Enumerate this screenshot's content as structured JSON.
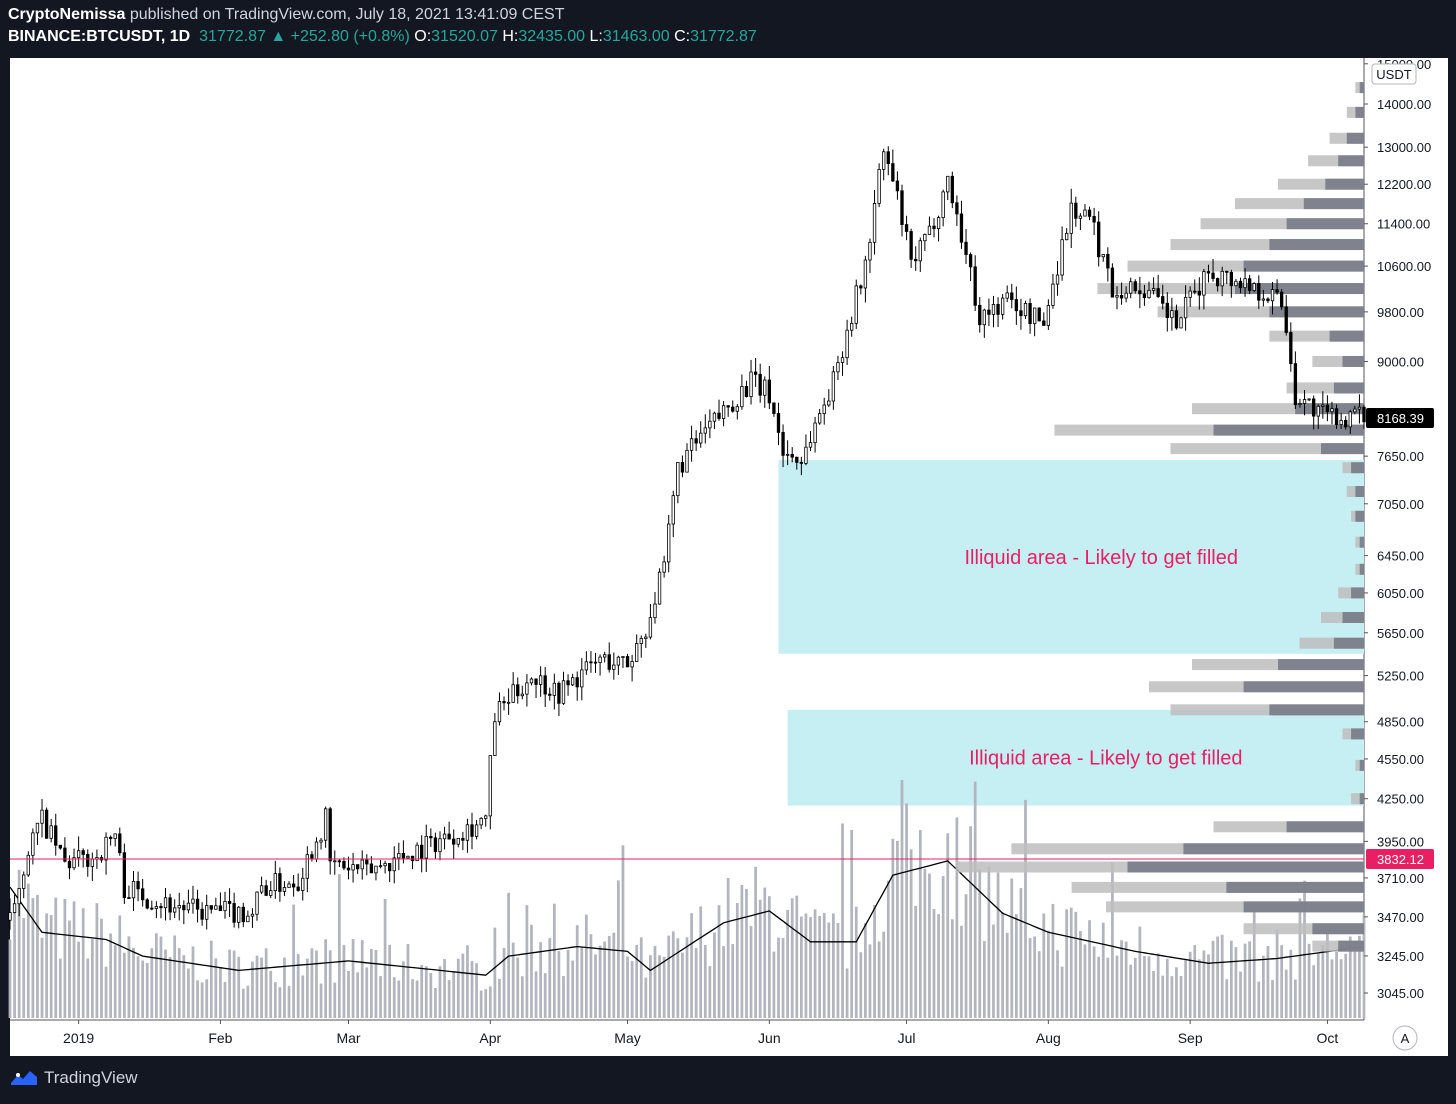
{
  "header": {
    "author": "CryptoNemissa",
    "published": "published on TradingView.com, July 18, 2021 13:41:09 CEST",
    "symbol": "BINANCE:BTCUSDT, 1D",
    "last_price": "31772.87",
    "change": "+252.80 (+0.8%)",
    "open_label": "O:",
    "open": "31520.07",
    "high_label": "H:",
    "high": "32435.00",
    "low_label": "L:",
    "low": "31463.00",
    "close_label": "C:",
    "close": "31772.87"
  },
  "footer": {
    "brand": "TradingView"
  },
  "colors": {
    "background": "#131722",
    "plot_bg": "#ffffff",
    "candle": "#000000",
    "volume": "#b2b5be",
    "zone": "#c6eff4",
    "zone_text": "#e91e63",
    "hline": "#e91e63",
    "profile_light": "#bdbdbd",
    "profile_dark": "#787b86"
  },
  "chart_data": {
    "type": "candlestick",
    "title": "",
    "currency_label": "USDT",
    "scale": "log",
    "ylim": [
      3000,
      15000
    ],
    "y_ticks": [
      "15000.00",
      "14000.00",
      "13000.00",
      "12200.00",
      "11400.00",
      "10600.00",
      "9800.00",
      "9000.00",
      "7650.00",
      "7050.00",
      "6450.00",
      "6050.00",
      "5650.00",
      "5250.00",
      "4850.00",
      "4550.00",
      "4250.00",
      "3950.00",
      "3710.00",
      "3470.00",
      "3245.00",
      "3045.00"
    ],
    "x_ticks": [
      "2019",
      "Feb",
      "Mar",
      "Apr",
      "May",
      "Jun",
      "Jul",
      "Aug",
      "Sep",
      "Oct"
    ],
    "x_range": [
      "2018-12-17",
      "2019-10-09"
    ],
    "price_labels": [
      {
        "value": 8168.39,
        "text": "8168.39",
        "style": "last"
      },
      {
        "value": 3832.12,
        "text": "3832.12",
        "style": "line"
      }
    ],
    "horizontal_line": 3832.12,
    "zones": [
      {
        "label": "Illiquid area - Likely to get filled",
        "from": "2019-06-03",
        "to": "2019-10-09",
        "low": 5450,
        "high": 7600
      },
      {
        "label": "Illiquid area - Likely to get filled",
        "from": "2019-06-05",
        "to": "2019-10-09",
        "low": 4200,
        "high": 4950
      }
    ],
    "price_path": [
      {
        "date": "2018-12-17",
        "price": 3450
      },
      {
        "date": "2018-12-21",
        "price": 3900
      },
      {
        "date": "2018-12-24",
        "price": 4100
      },
      {
        "date": "2018-12-29",
        "price": 3800
      },
      {
        "date": "2019-01-05",
        "price": 3850
      },
      {
        "date": "2019-01-09",
        "price": 4000
      },
      {
        "date": "2019-01-11",
        "price": 3650
      },
      {
        "date": "2019-01-20",
        "price": 3550
      },
      {
        "date": "2019-01-28",
        "price": 3500
      },
      {
        "date": "2019-02-08",
        "price": 3500
      },
      {
        "date": "2019-02-10",
        "price": 3650
      },
      {
        "date": "2019-02-18",
        "price": 3700
      },
      {
        "date": "2019-02-24",
        "price": 4100
      },
      {
        "date": "2019-02-25",
        "price": 3800
      },
      {
        "date": "2019-03-05",
        "price": 3750
      },
      {
        "date": "2019-03-20",
        "price": 3950
      },
      {
        "date": "2019-03-31",
        "price": 4100
      },
      {
        "date": "2019-04-02",
        "price": 4900
      },
      {
        "date": "2019-04-10",
        "price": 5250
      },
      {
        "date": "2019-04-16",
        "price": 5100
      },
      {
        "date": "2019-04-25",
        "price": 5400
      },
      {
        "date": "2019-05-01",
        "price": 5350
      },
      {
        "date": "2019-05-05",
        "price": 5700
      },
      {
        "date": "2019-05-09",
        "price": 6300
      },
      {
        "date": "2019-05-12",
        "price": 7500
      },
      {
        "date": "2019-05-17",
        "price": 7900
      },
      {
        "date": "2019-05-28",
        "price": 8700
      },
      {
        "date": "2019-06-01",
        "price": 8500
      },
      {
        "date": "2019-06-04",
        "price": 7700
      },
      {
        "date": "2019-06-08",
        "price": 7600
      },
      {
        "date": "2019-06-15",
        "price": 8700
      },
      {
        "date": "2019-06-22",
        "price": 10600
      },
      {
        "date": "2019-06-26",
        "price": 12900
      },
      {
        "date": "2019-06-29",
        "price": 11900
      },
      {
        "date": "2019-07-02",
        "price": 10600
      },
      {
        "date": "2019-07-06",
        "price": 11200
      },
      {
        "date": "2019-07-10",
        "price": 12300
      },
      {
        "date": "2019-07-17",
        "price": 9700
      },
      {
        "date": "2019-07-23",
        "price": 10000
      },
      {
        "date": "2019-07-31",
        "price": 9600
      },
      {
        "date": "2019-08-06",
        "price": 11700
      },
      {
        "date": "2019-08-10",
        "price": 11500
      },
      {
        "date": "2019-08-15",
        "price": 10200
      },
      {
        "date": "2019-08-22",
        "price": 10200
      },
      {
        "date": "2019-08-29",
        "price": 9600
      },
      {
        "date": "2019-09-05",
        "price": 10500
      },
      {
        "date": "2019-09-13",
        "price": 10300
      },
      {
        "date": "2019-09-21",
        "price": 10000
      },
      {
        "date": "2019-09-24",
        "price": 8500
      },
      {
        "date": "2019-09-30",
        "price": 8200
      },
      {
        "date": "2019-10-09",
        "price": 8168
      }
    ],
    "volume_ma_path": [
      {
        "date": "2018-12-17",
        "value": 0.55
      },
      {
        "date": "2018-12-24",
        "value": 0.36
      },
      {
        "date": "2019-01-07",
        "value": 0.33
      },
      {
        "date": "2019-01-15",
        "value": 0.26
      },
      {
        "date": "2019-02-05",
        "value": 0.2
      },
      {
        "date": "2019-03-01",
        "value": 0.24
      },
      {
        "date": "2019-03-31",
        "value": 0.18
      },
      {
        "date": "2019-04-05",
        "value": 0.26
      },
      {
        "date": "2019-04-20",
        "value": 0.3
      },
      {
        "date": "2019-05-01",
        "value": 0.28
      },
      {
        "date": "2019-05-06",
        "value": 0.2
      },
      {
        "date": "2019-05-22",
        "value": 0.4
      },
      {
        "date": "2019-06-01",
        "value": 0.45
      },
      {
        "date": "2019-06-10",
        "value": 0.32
      },
      {
        "date": "2019-06-20",
        "value": 0.32
      },
      {
        "date": "2019-06-28",
        "value": 0.6
      },
      {
        "date": "2019-07-10",
        "value": 0.66
      },
      {
        "date": "2019-07-22",
        "value": 0.44
      },
      {
        "date": "2019-08-01",
        "value": 0.36
      },
      {
        "date": "2019-08-20",
        "value": 0.28
      },
      {
        "date": "2019-09-05",
        "value": 0.23
      },
      {
        "date": "2019-09-20",
        "value": 0.25
      },
      {
        "date": "2019-10-09",
        "value": 0.3
      }
    ],
    "volume_profile": [
      {
        "price": 14400,
        "total": 0.02,
        "part": 0.01
      },
      {
        "price": 13800,
        "total": 0.04,
        "part": 0.02
      },
      {
        "price": 13200,
        "total": 0.08,
        "part": 0.04
      },
      {
        "price": 12700,
        "total": 0.13,
        "part": 0.06
      },
      {
        "price": 12200,
        "total": 0.2,
        "part": 0.09
      },
      {
        "price": 11800,
        "total": 0.3,
        "part": 0.14
      },
      {
        "price": 11400,
        "total": 0.38,
        "part": 0.18
      },
      {
        "price": 11000,
        "total": 0.45,
        "part": 0.22
      },
      {
        "price": 10600,
        "total": 0.55,
        "part": 0.28
      },
      {
        "price": 10200,
        "total": 0.62,
        "part": 0.3
      },
      {
        "price": 9800,
        "total": 0.48,
        "part": 0.22
      },
      {
        "price": 9400,
        "total": 0.22,
        "part": 0.08
      },
      {
        "price": 9000,
        "total": 0.12,
        "part": 0.05
      },
      {
        "price": 8600,
        "total": 0.18,
        "part": 0.07
      },
      {
        "price": 8300,
        "total": 0.4,
        "part": 0.16
      },
      {
        "price": 8000,
        "total": 0.72,
        "part": 0.35
      },
      {
        "price": 7750,
        "total": 0.45,
        "part": 0.1
      },
      {
        "price": 7500,
        "total": 0.05,
        "part": 0.03
      },
      {
        "price": 7200,
        "total": 0.04,
        "part": 0.02
      },
      {
        "price": 6900,
        "total": 0.03,
        "part": 0.02
      },
      {
        "price": 6600,
        "total": 0.02,
        "part": 0.01
      },
      {
        "price": 6300,
        "total": 0.02,
        "part": 0.01
      },
      {
        "price": 6050,
        "total": 0.06,
        "part": 0.03
      },
      {
        "price": 5800,
        "total": 0.1,
        "part": 0.05
      },
      {
        "price": 5550,
        "total": 0.15,
        "part": 0.07
      },
      {
        "price": 5350,
        "total": 0.4,
        "part": 0.2
      },
      {
        "price": 5150,
        "total": 0.5,
        "part": 0.28
      },
      {
        "price": 4950,
        "total": 0.45,
        "part": 0.22
      },
      {
        "price": 4750,
        "total": 0.05,
        "part": 0.03
      },
      {
        "price": 4500,
        "total": 0.02,
        "part": 0.01
      },
      {
        "price": 4250,
        "total": 0.03,
        "part": 0.01
      },
      {
        "price": 4050,
        "total": 0.35,
        "part": 0.18
      },
      {
        "price": 3900,
        "total": 0.82,
        "part": 0.42
      },
      {
        "price": 3780,
        "total": 0.95,
        "part": 0.55
      },
      {
        "price": 3650,
        "total": 0.68,
        "part": 0.32
      },
      {
        "price": 3530,
        "total": 0.6,
        "part": 0.28
      },
      {
        "price": 3400,
        "total": 0.28,
        "part": 0.12
      },
      {
        "price": 3300,
        "total": 0.12,
        "part": 0.06
      }
    ]
  }
}
